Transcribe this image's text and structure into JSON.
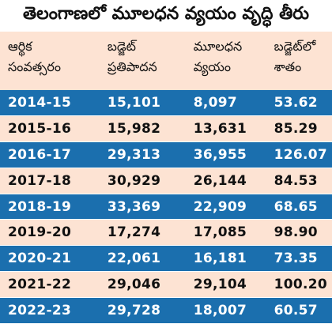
{
  "title": "తెలంగాణలో మూలధన వ్యయం వృద్ధి తీరు",
  "headers": [
    [
      "ఆర్థిక",
      "సంవత్సరం"
    ],
    [
      "బడ్జెట్",
      "ప్రతిపాదన"
    ],
    [
      "మూలధన",
      "వ్యయం"
    ],
    [
      "బడ్జెట్‌లో",
      "శాతం"
    ]
  ],
  "rows": [
    [
      "2014-15",
      "15,101",
      "8,097",
      "53.62"
    ],
    [
      "2015-16",
      "15,982",
      "13,631",
      "85.29"
    ],
    [
      "2016-17",
      "29,313",
      "36,955",
      "126.07"
    ],
    [
      "2017-18",
      "30,929",
      "26,144",
      "84.53"
    ],
    [
      "2018-19",
      "33,369",
      "22,909",
      "68.65"
    ],
    [
      "2019-20",
      "17,274",
      "17,085",
      "98.90"
    ],
    [
      "2020-21",
      "22,061",
      "16,181",
      "73.35"
    ],
    [
      "2021-22",
      "29,046",
      "29,104",
      "100.20"
    ],
    [
      "2022-23",
      "29,728",
      "18,007",
      "60.57"
    ]
  ],
  "colors": {
    "dark_row": "#1b6fae",
    "light_row": "#fde3d3",
    "header_bg": "#fde3d3"
  }
}
